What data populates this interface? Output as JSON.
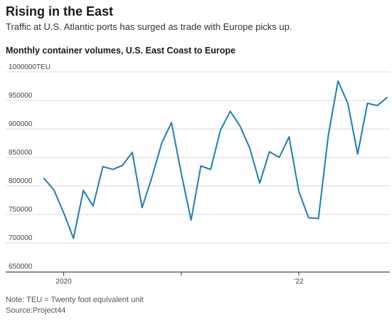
{
  "header": {
    "title": "Rising in the East",
    "subtitle": "Traffic at U.S. Atlantic ports has surged as trade with Europe picks up."
  },
  "chart_heading": "Monthly container volumes, U.S. East Coast to Europe",
  "footer": {
    "note": "Note: TEU = Twenty foot equivalent unit",
    "source": "Source:Project44"
  },
  "colors": {
    "line": "#1f7fa8",
    "grid": "#d9d9d9",
    "axis": "#333333"
  },
  "chart_data": {
    "type": "line",
    "title": "Monthly container volumes, U.S. East Coast to Europe",
    "xlabel": "",
    "ylabel": "",
    "ylim": [
      650000,
      1000000
    ],
    "y_ticks": [
      650000,
      700000,
      750000,
      800000,
      850000,
      900000,
      950000,
      1000000
    ],
    "y_tick_labels": [
      "650000",
      "700000",
      "750000",
      "800000",
      "850000",
      "900000",
      "950000",
      "1000000TEU"
    ],
    "x_tick_labels": [
      {
        "label": "2020",
        "date": "2020-01"
      },
      {
        "label": "",
        "date": "2021-01"
      },
      {
        "label": "'22",
        "date": "2022-01"
      }
    ],
    "grid": true,
    "series": [
      {
        "values": [
          {
            "date": "2019-11",
            "value": 813000
          },
          {
            "date": "2019-12",
            "value": 793000
          },
          {
            "date": "2020-01",
            "value": 753000
          },
          {
            "date": "2020-02",
            "value": 708000
          },
          {
            "date": "2020-03",
            "value": 792000
          },
          {
            "date": "2020-04",
            "value": 765000
          },
          {
            "date": "2020-05",
            "value": 834000
          },
          {
            "date": "2020-06",
            "value": 829000
          },
          {
            "date": "2020-07",
            "value": 836000
          },
          {
            "date": "2020-08",
            "value": 859000
          },
          {
            "date": "2020-09",
            "value": 762000
          },
          {
            "date": "2020-10",
            "value": 815000
          },
          {
            "date": "2020-11",
            "value": 875000
          },
          {
            "date": "2020-12",
            "value": 911000
          },
          {
            "date": "2021-01",
            "value": 822000
          },
          {
            "date": "2021-02",
            "value": 740000
          },
          {
            "date": "2021-03",
            "value": 835000
          },
          {
            "date": "2021-04",
            "value": 829000
          },
          {
            "date": "2021-05",
            "value": 898000
          },
          {
            "date": "2021-06",
            "value": 931000
          },
          {
            "date": "2021-07",
            "value": 905000
          },
          {
            "date": "2021-08",
            "value": 866000
          },
          {
            "date": "2021-09",
            "value": 805000
          },
          {
            "date": "2021-10",
            "value": 860000
          },
          {
            "date": "2021-11",
            "value": 850000
          },
          {
            "date": "2021-12",
            "value": 886000
          },
          {
            "date": "2022-01",
            "value": 790000
          },
          {
            "date": "2022-02",
            "value": 744000
          },
          {
            "date": "2022-03",
            "value": 743000
          },
          {
            "date": "2022-04",
            "value": 888000
          },
          {
            "date": "2022-05",
            "value": 984000
          },
          {
            "date": "2022-06",
            "value": 945000
          },
          {
            "date": "2022-07",
            "value": 856000
          },
          {
            "date": "2022-08",
            "value": 945000
          },
          {
            "date": "2022-09",
            "value": 941000
          },
          {
            "date": "2022-10",
            "value": 955000
          }
        ]
      }
    ]
  }
}
